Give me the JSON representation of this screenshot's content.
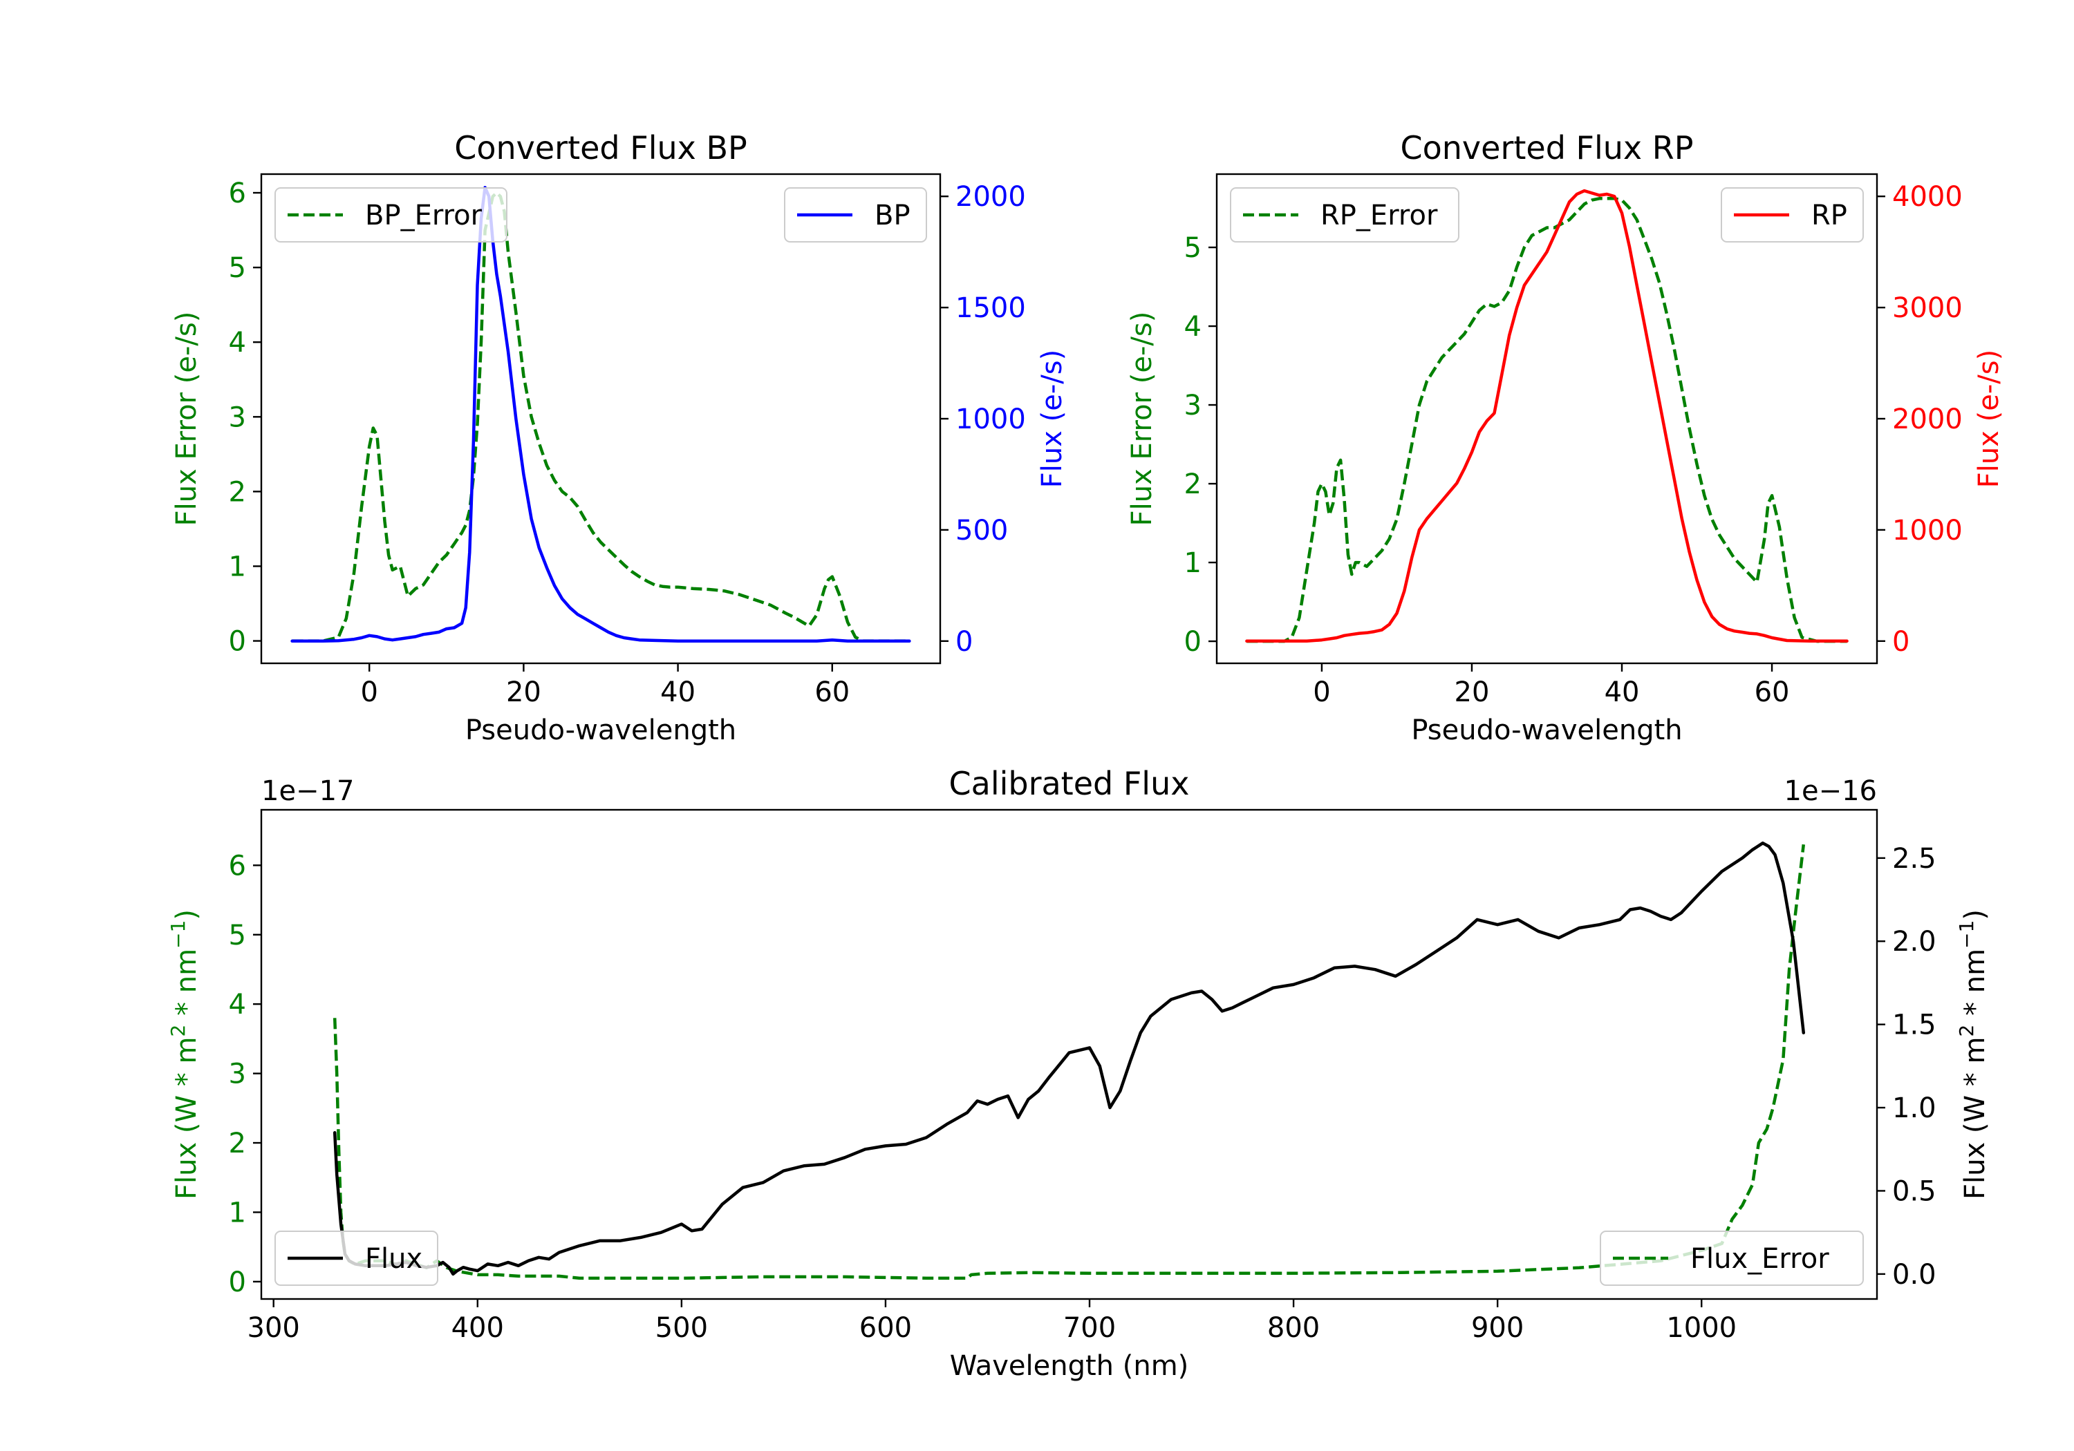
{
  "chart_data": [
    {
      "type": "line",
      "title": "Converted Flux BP",
      "xlabel": "Pseudo-wavelength",
      "ylabel_left": "Flux Error (e-/s)",
      "ylabel_right": "Flux (e-/s)",
      "xlim": [
        -14,
        74
      ],
      "ylim_left": [
        -0.3,
        6.25
      ],
      "ylim_right": [
        -100,
        2100
      ],
      "xticks": [
        0,
        20,
        40,
        60
      ],
      "yticks_left": [
        0,
        1,
        2,
        3,
        4,
        5,
        6
      ],
      "yticks_right": [
        0,
        500,
        1000,
        1500,
        2000
      ],
      "legend_left": "top-left",
      "legend_right": "top-right",
      "series": [
        {
          "name": "BP_Error",
          "axis": "left",
          "style": "dashed",
          "color": "#008000",
          "x": [
            -10,
            -6,
            -4,
            -3,
            -2,
            -1,
            0,
            0.5,
            1,
            2,
            2.5,
            3,
            4,
            5,
            6,
            7,
            8,
            9,
            10,
            11,
            12,
            12.5,
            13,
            13.5,
            14,
            14.5,
            15,
            16,
            16.5,
            17,
            17.5,
            18,
            19,
            20,
            21,
            22,
            23,
            24,
            25,
            26,
            27,
            28,
            29,
            30,
            31,
            32,
            33,
            34,
            35,
            36,
            37,
            38,
            39,
            40,
            42,
            44,
            46,
            48,
            50,
            52,
            54,
            55,
            56,
            57,
            58,
            59,
            59.5,
            60,
            61,
            62,
            63,
            64,
            65,
            66,
            68,
            70
          ],
          "y": [
            0,
            0,
            0.05,
            0.3,
            0.9,
            1.8,
            2.6,
            2.85,
            2.75,
            1.6,
            1.15,
            0.95,
            1.0,
            0.6,
            0.7,
            0.75,
            0.9,
            1.05,
            1.15,
            1.3,
            1.45,
            1.55,
            1.75,
            2.2,
            2.9,
            4.0,
            5.5,
            5.95,
            6.0,
            5.95,
            5.75,
            5.2,
            4.4,
            3.55,
            3.0,
            2.65,
            2.35,
            2.15,
            2.0,
            1.92,
            1.8,
            1.62,
            1.45,
            1.32,
            1.22,
            1.12,
            1.02,
            0.93,
            0.86,
            0.8,
            0.75,
            0.73,
            0.72,
            0.72,
            0.7,
            0.69,
            0.67,
            0.62,
            0.55,
            0.48,
            0.37,
            0.32,
            0.26,
            0.2,
            0.35,
            0.7,
            0.82,
            0.86,
            0.6,
            0.25,
            0.05,
            0,
            0,
            0,
            0,
            0
          ]
        },
        {
          "name": "BP",
          "axis": "right",
          "style": "solid",
          "color": "#0000ff",
          "x": [
            -10,
            -6,
            -4,
            -2,
            -1,
            0,
            1,
            2,
            3,
            4,
            5,
            6,
            7,
            8,
            9,
            10,
            11,
            12,
            12.5,
            13,
            13.5,
            14,
            14.5,
            15,
            15.5,
            16,
            16.5,
            17,
            18,
            19,
            20,
            21,
            22,
            23,
            24,
            25,
            26,
            27,
            28,
            29,
            30,
            31,
            32,
            33,
            34,
            35,
            37,
            40,
            45,
            50,
            55,
            58,
            60,
            62,
            65,
            70
          ],
          "y": [
            0,
            0,
            2,
            8,
            15,
            25,
            20,
            10,
            5,
            10,
            15,
            20,
            30,
            35,
            40,
            55,
            60,
            80,
            150,
            400,
            900,
            1600,
            1900,
            2040,
            2000,
            1800,
            1650,
            1550,
            1300,
            1000,
            750,
            550,
            420,
            330,
            250,
            190,
            150,
            120,
            100,
            80,
            60,
            40,
            25,
            15,
            10,
            5,
            3,
            0,
            0,
            0,
            0,
            0,
            5,
            0,
            0,
            0
          ]
        }
      ]
    },
    {
      "type": "line",
      "title": "Converted Flux RP",
      "xlabel": "Pseudo-wavelength",
      "ylabel_left": "Flux Error (e-/s)",
      "ylabel_right": "Flux (e-/s)",
      "xlim": [
        -14,
        74
      ],
      "ylim_left": [
        -0.28,
        5.93
      ],
      "ylim_right": [
        -200,
        4200
      ],
      "xticks": [
        0,
        20,
        40,
        60
      ],
      "yticks_left": [
        0,
        1,
        2,
        3,
        4,
        5
      ],
      "yticks_right": [
        0,
        1000,
        2000,
        3000,
        4000
      ],
      "legend_left": "top-left",
      "legend_right": "top-right",
      "series": [
        {
          "name": "RP_Error",
          "axis": "left",
          "style": "dashed",
          "color": "#008000",
          "x": [
            -10,
            -5,
            -4,
            -3,
            -2,
            -1,
            -0.5,
            0,
            0.5,
            1,
            1.5,
            2,
            2.5,
            3,
            3.5,
            4,
            4.5,
            5,
            6,
            7,
            8,
            9,
            10,
            11,
            12,
            13,
            14,
            15,
            16,
            17,
            18,
            19,
            20,
            21,
            22,
            23,
            24,
            25,
            26,
            27,
            28,
            29,
            30,
            31,
            32,
            33,
            34,
            35,
            36,
            37,
            38,
            39,
            40,
            41,
            42,
            43,
            44,
            45,
            46,
            47,
            48,
            49,
            50,
            51,
            52,
            53,
            54,
            55,
            56,
            57,
            58,
            59,
            59.5,
            60,
            61,
            62,
            63,
            64,
            66,
            70
          ],
          "y": [
            0,
            0,
            0.05,
            0.3,
            0.9,
            1.5,
            1.9,
            2.0,
            1.9,
            1.6,
            1.75,
            2.2,
            2.3,
            1.8,
            1.1,
            0.85,
            1.0,
            1.0,
            0.95,
            1.05,
            1.15,
            1.3,
            1.55,
            2.0,
            2.5,
            3.0,
            3.3,
            3.45,
            3.6,
            3.7,
            3.8,
            3.9,
            4.05,
            4.2,
            4.28,
            4.25,
            4.3,
            4.45,
            4.75,
            5.0,
            5.15,
            5.2,
            5.25,
            5.25,
            5.3,
            5.35,
            5.45,
            5.55,
            5.6,
            5.62,
            5.62,
            5.62,
            5.6,
            5.5,
            5.35,
            5.1,
            4.85,
            4.55,
            4.15,
            3.7,
            3.2,
            2.7,
            2.25,
            1.85,
            1.55,
            1.35,
            1.2,
            1.05,
            0.95,
            0.85,
            0.75,
            1.3,
            1.75,
            1.85,
            1.45,
            0.8,
            0.3,
            0.05,
            0,
            0
          ]
        },
        {
          "name": "RP",
          "axis": "right",
          "style": "solid",
          "color": "#ff0000",
          "x": [
            -10,
            -5,
            -2,
            0,
            1,
            2,
            3,
            4,
            5,
            6,
            7,
            8,
            9,
            10,
            11,
            12,
            13,
            14,
            15,
            16,
            17,
            18,
            19,
            20,
            21,
            22,
            23,
            24,
            25,
            26,
            27,
            28,
            29,
            30,
            31,
            32,
            33,
            34,
            35,
            36,
            37,
            38,
            39,
            40,
            41,
            42,
            43,
            44,
            45,
            46,
            47,
            48,
            49,
            50,
            51,
            52,
            53,
            54,
            55,
            56,
            57,
            58,
            59,
            60,
            62,
            65,
            70
          ],
          "y": [
            0,
            0,
            0,
            10,
            20,
            30,
            50,
            60,
            70,
            75,
            85,
            100,
            150,
            250,
            450,
            750,
            1000,
            1100,
            1180,
            1260,
            1340,
            1420,
            1550,
            1700,
            1880,
            1980,
            2050,
            2400,
            2750,
            3000,
            3200,
            3300,
            3400,
            3500,
            3650,
            3800,
            3950,
            4020,
            4050,
            4030,
            4010,
            4020,
            4000,
            3850,
            3550,
            3200,
            2850,
            2500,
            2150,
            1800,
            1450,
            1100,
            800,
            550,
            350,
            220,
            150,
            110,
            90,
            80,
            70,
            65,
            50,
            30,
            5,
            0,
            0
          ]
        }
      ]
    },
    {
      "type": "line",
      "title": "Calibrated Flux",
      "xlabel": "Wavelength (nm)",
      "ylabel_left": "Flux (W * m",
      "ylabel_left_sup": "2",
      "ylabel_left_tail": " * nm",
      "ylabel_left_sup2": "−1",
      "ylabel_left_end": ")",
      "ylabel_right": "Flux (W * m",
      "ylabel_right_sup": "2",
      "ylabel_right_tail": " * nm",
      "ylabel_right_sup2": "−1",
      "ylabel_right_end": ")",
      "scale_left": "1e−17",
      "scale_right": "1e−16",
      "xlim": [
        294,
        1086
      ],
      "ylim_left": [
        -0.25,
        6.8
      ],
      "ylim_right": [
        -0.15,
        2.79
      ],
      "xticks": [
        300,
        400,
        500,
        600,
        700,
        800,
        900,
        1000
      ],
      "yticks_left": [
        0,
        1,
        2,
        3,
        4,
        5,
        6
      ],
      "yticks_right": [
        "0.0",
        "0.5",
        "1.0",
        "1.5",
        "2.0",
        "2.5"
      ],
      "legend_left": "bottom-left",
      "legend_right": "bottom-right",
      "series": [
        {
          "name": "Flux",
          "axis": "right",
          "style": "solid",
          "color": "#000000",
          "x": [
            330,
            331,
            333,
            335,
            337,
            340,
            345,
            350,
            355,
            360,
            365,
            370,
            375,
            380,
            383,
            386,
            388,
            390,
            393,
            396,
            400,
            405,
            410,
            415,
            420,
            425,
            430,
            435,
            440,
            450,
            460,
            470,
            480,
            490,
            500,
            505,
            510,
            520,
            530,
            540,
            550,
            560,
            570,
            580,
            590,
            600,
            610,
            620,
            630,
            640,
            645,
            650,
            655,
            660,
            665,
            670,
            675,
            680,
            690,
            700,
            705,
            710,
            715,
            720,
            725,
            730,
            740,
            750,
            755,
            760,
            765,
            770,
            775,
            780,
            790,
            800,
            810,
            820,
            830,
            840,
            850,
            860,
            870,
            880,
            890,
            900,
            910,
            920,
            930,
            940,
            950,
            960,
            965,
            970,
            975,
            980,
            985,
            990,
            1000,
            1010,
            1020,
            1025,
            1030,
            1033,
            1036,
            1040,
            1045,
            1050
          ],
          "y": [
            0.85,
            0.6,
            0.3,
            0.12,
            0.08,
            0.06,
            0.05,
            0.05,
            0.05,
            0.06,
            0.07,
            0.05,
            0.04,
            0.05,
            0.07,
            0.04,
            0.0,
            0.02,
            0.04,
            0.03,
            0.02,
            0.06,
            0.05,
            0.07,
            0.05,
            0.08,
            0.1,
            0.09,
            0.13,
            0.17,
            0.2,
            0.2,
            0.22,
            0.25,
            0.3,
            0.26,
            0.27,
            0.42,
            0.52,
            0.55,
            0.62,
            0.65,
            0.66,
            0.7,
            0.75,
            0.77,
            0.78,
            0.82,
            0.9,
            0.97,
            1.04,
            1.02,
            1.05,
            1.07,
            0.94,
            1.05,
            1.1,
            1.18,
            1.33,
            1.36,
            1.25,
            1.0,
            1.1,
            1.28,
            1.45,
            1.55,
            1.65,
            1.69,
            1.7,
            1.65,
            1.58,
            1.6,
            1.63,
            1.66,
            1.72,
            1.74,
            1.78,
            1.84,
            1.85,
            1.83,
            1.79,
            1.86,
            1.94,
            2.02,
            2.13,
            2.1,
            2.13,
            2.06,
            2.02,
            2.08,
            2.1,
            2.13,
            2.19,
            2.2,
            2.18,
            2.15,
            2.13,
            2.17,
            2.3,
            2.42,
            2.5,
            2.55,
            2.59,
            2.57,
            2.52,
            2.35,
            2.0,
            1.45
          ]
        },
        {
          "name": "Flux_Error",
          "axis": "left",
          "style": "dashed",
          "color": "#008000",
          "x": [
            330,
            331,
            332,
            333,
            334,
            335,
            337,
            340,
            345,
            350,
            355,
            360,
            365,
            370,
            375,
            380,
            385,
            390,
            400,
            410,
            420,
            430,
            440,
            450,
            460,
            470,
            480,
            490,
            500,
            520,
            540,
            560,
            580,
            600,
            620,
            640,
            642,
            650,
            670,
            700,
            750,
            800,
            850,
            900,
            940,
            960,
            980,
            1000,
            1010,
            1015,
            1020,
            1025,
            1028,
            1032,
            1035,
            1040,
            1043,
            1046,
            1048,
            1050
          ],
          "y": [
            3.8,
            3.0,
            1.9,
            1.0,
            0.6,
            0.4,
            0.3,
            0.25,
            0.3,
            0.3,
            0.3,
            0.25,
            0.3,
            0.25,
            0.2,
            0.3,
            0.2,
            0.15,
            0.1,
            0.1,
            0.08,
            0.08,
            0.08,
            0.05,
            0.05,
            0.05,
            0.05,
            0.05,
            0.05,
            0.06,
            0.07,
            0.07,
            0.07,
            0.06,
            0.05,
            0.05,
            0.1,
            0.12,
            0.13,
            0.12,
            0.12,
            0.12,
            0.13,
            0.15,
            0.2,
            0.25,
            0.3,
            0.45,
            0.55,
            0.9,
            1.1,
            1.4,
            2.0,
            2.2,
            2.5,
            3.2,
            4.5,
            5.3,
            5.8,
            6.3
          ]
        }
      ]
    }
  ]
}
